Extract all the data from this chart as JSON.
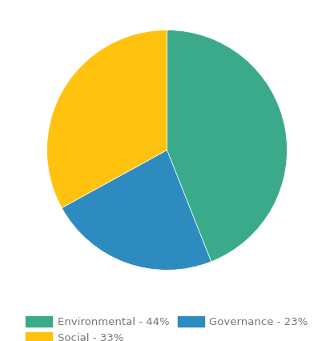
{
  "labels": [
    "Environmental - 44%",
    "Social - 33%",
    "Governance - 23%"
  ],
  "values": [
    44,
    33,
    23
  ],
  "colors": [
    "#3aaa8a",
    "#ffc20e",
    "#2e8bc0"
  ],
  "startangle": 90,
  "background_color": "#ffffff",
  "legend_fontsize": 9.5,
  "legend_text_color": "#777777"
}
